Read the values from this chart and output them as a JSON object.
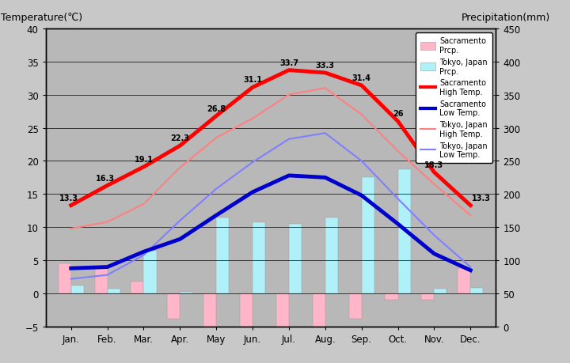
{
  "months": [
    "Jan.",
    "Feb.",
    "Mar.",
    "Apr.",
    "May",
    "Jun.",
    "Jul.",
    "Aug.",
    "Sep.",
    "Oct.",
    "Nov.",
    "Dec."
  ],
  "sacramento_high": [
    13.3,
    16.3,
    19.1,
    22.3,
    26.8,
    31.1,
    33.7,
    33.3,
    31.4,
    26,
    18.3,
    13.3
  ],
  "sacramento_low": [
    3.8,
    4.0,
    6.3,
    8.2,
    11.8,
    15.3,
    17.8,
    17.5,
    14.8,
    10.5,
    6.0,
    3.5
  ],
  "tokyo_high": [
    9.8,
    10.8,
    13.5,
    19.0,
    23.5,
    26.4,
    30.0,
    31.0,
    27.0,
    21.5,
    16.5,
    11.8
  ],
  "tokyo_low": [
    2.2,
    2.8,
    5.8,
    11.0,
    15.8,
    19.8,
    23.3,
    24.2,
    20.0,
    14.3,
    8.8,
    4.0
  ],
  "sac_prcp_scaled": [
    4.5,
    4.0,
    1.8,
    -3.8,
    -5.8,
    -5.0,
    -5.8,
    -5.8,
    -3.8,
    -1.0,
    -1.0,
    3.8
  ],
  "tok_prcp_scaled": [
    1.2,
    0.7,
    6.5,
    0.2,
    11.5,
    10.8,
    10.5,
    11.5,
    17.5,
    18.8,
    0.7,
    0.8
  ],
  "bg_color": "#c8c8c8",
  "plot_bg_color": "#b0b0b0",
  "title_left": "Temperature(℃)",
  "title_right": "Precipitation(mm)",
  "ylim_left": [
    -5,
    40
  ],
  "ylim_right": [
    0,
    450
  ],
  "right_ticks": [
    0,
    50,
    100,
    150,
    200,
    250,
    300,
    350,
    400,
    450
  ],
  "left_ticks": [
    -5,
    0,
    5,
    10,
    15,
    20,
    25,
    30,
    35,
    40
  ],
  "sac_high_labels": {
    "0": "13.3",
    "1": "16.3",
    "2": "19.1",
    "3": "22.3",
    "4": "26.8",
    "5": "31.1",
    "6": "33.7",
    "7": "33.3",
    "8": "31.4",
    "9": "26",
    "10": "18.3",
    "11": "13.3"
  },
  "sac_high_color": "#ff0000",
  "sac_low_color": "#0000cc",
  "tokyo_high_color": "#ff8080",
  "tokyo_low_color": "#8080ff",
  "sac_prcp_color": "#ffb6c8",
  "tokyo_prcp_color": "#b0f0f8"
}
